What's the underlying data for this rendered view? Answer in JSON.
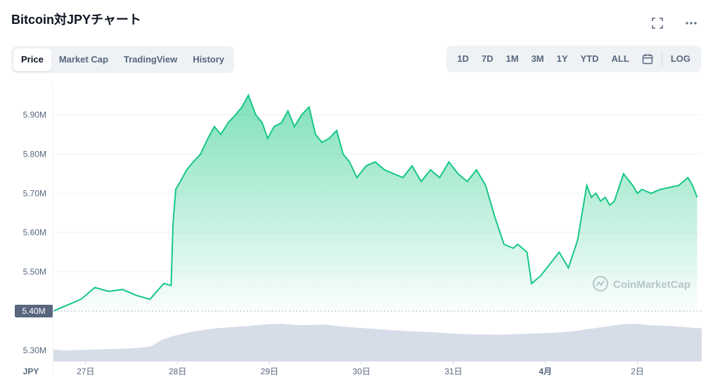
{
  "header": {
    "title": "Bitcoin対JPYチャート"
  },
  "icons": {
    "fullscreen": "fullscreen-icon",
    "more": "more-icon",
    "calendar": "calendar-icon",
    "watermark": "coinmarketcap-logo-icon"
  },
  "tabs": [
    {
      "label": "Price",
      "active": true
    },
    {
      "label": "Market Cap",
      "active": false
    },
    {
      "label": "TradingView",
      "active": false
    },
    {
      "label": "History",
      "active": false
    }
  ],
  "ranges": [
    "1D",
    "7D",
    "1M",
    "3M",
    "1Y",
    "YTD",
    "ALL"
  ],
  "log_label": "LOG",
  "watermark": "CoinMarketCap",
  "colors": {
    "line": "#16c784",
    "fill_top": "#16c784",
    "volume": "#cfd6e4",
    "text": "#58667e"
  },
  "chart_data": {
    "type": "area",
    "y_unit_label": "JPY",
    "y_ticks": [
      "5.90M",
      "5.80M",
      "5.70M",
      "5.60M",
      "5.50M",
      "5.30M"
    ],
    "y_tick_values": [
      5900000,
      5800000,
      5700000,
      5600000,
      5500000,
      5300000
    ],
    "ylim": [
      5280000,
      5960000
    ],
    "x_ticks": [
      "27日",
      "28日",
      "29日",
      "30日",
      "31日",
      "4月",
      "2日"
    ],
    "x_tick_days": [
      0.35,
      1.35,
      2.35,
      3.35,
      4.35,
      5.35,
      6.35
    ],
    "xlim": [
      0,
      7.05
    ],
    "baseline": {
      "label": "5.40M",
      "value": 5400000
    },
    "series": [
      {
        "x": [
          0,
          0.15,
          0.3,
          0.45,
          0.6,
          0.75,
          0.9,
          1.05,
          1.2,
          1.28,
          1.3,
          1.33,
          1.38,
          1.45,
          1.52,
          1.6,
          1.68,
          1.75,
          1.82,
          1.9,
          1.98,
          2.05,
          2.12,
          2.2,
          2.27,
          2.33,
          2.4,
          2.48,
          2.55,
          2.62,
          2.7,
          2.78,
          2.85,
          2.92,
          3.0,
          3.08,
          3.15,
          3.22,
          3.3,
          3.4,
          3.5,
          3.6,
          3.7,
          3.8,
          3.9,
          4.0,
          4.1,
          4.2,
          4.3,
          4.4,
          4.5,
          4.6,
          4.7,
          4.8,
          4.9,
          5.0,
          5.05,
          5.1,
          5.15,
          5.2,
          5.3,
          5.4,
          5.5,
          5.6,
          5.7,
          5.8,
          5.85,
          5.9,
          5.95,
          6.0,
          6.05,
          6.1,
          6.2,
          6.3,
          6.35,
          6.4,
          6.45,
          6.5,
          6.6,
          6.7,
          6.8,
          6.9,
          6.95,
          7.0
        ],
        "values": [
          5400000,
          5415000,
          5430000,
          5460000,
          5450000,
          5455000,
          5440000,
          5430000,
          5470000,
          5465000,
          5620000,
          5710000,
          5730000,
          5760000,
          5780000,
          5800000,
          5840000,
          5870000,
          5850000,
          5880000,
          5900000,
          5920000,
          5950000,
          5900000,
          5880000,
          5840000,
          5870000,
          5880000,
          5910000,
          5870000,
          5900000,
          5920000,
          5850000,
          5830000,
          5840000,
          5860000,
          5800000,
          5780000,
          5740000,
          5770000,
          5780000,
          5760000,
          5750000,
          5740000,
          5770000,
          5730000,
          5760000,
          5740000,
          5780000,
          5750000,
          5730000,
          5760000,
          5720000,
          5640000,
          5570000,
          5560000,
          5570000,
          5560000,
          5550000,
          5470000,
          5490000,
          5520000,
          5550000,
          5510000,
          5580000,
          5720000,
          5690000,
          5700000,
          5680000,
          5690000,
          5670000,
          5680000,
          5750000,
          5720000,
          5700000,
          5710000,
          5705000,
          5700000,
          5710000,
          5715000,
          5720000,
          5740000,
          5720000,
          5690000
        ]
      }
    ],
    "volume": [
      0.3,
      0.27,
      0.28,
      0.29,
      0.3,
      0.31,
      0.32,
      0.33,
      0.35,
      0.38,
      0.55,
      0.65,
      0.72,
      0.78,
      0.82,
      0.86,
      0.88,
      0.9,
      0.92,
      0.95,
      0.97,
      0.98,
      0.96,
      0.94,
      0.95,
      0.96,
      0.93,
      0.9,
      0.88,
      0.86,
      0.84,
      0.82,
      0.8,
      0.78,
      0.77,
      0.76,
      0.74,
      0.72,
      0.71,
      0.7,
      0.7,
      0.69,
      0.7,
      0.71,
      0.72,
      0.73,
      0.74,
      0.76,
      0.78,
      0.82,
      0.86,
      0.9,
      0.94,
      0.97,
      0.98,
      0.95,
      0.93,
      0.92,
      0.9,
      0.88,
      0.86
    ]
  }
}
